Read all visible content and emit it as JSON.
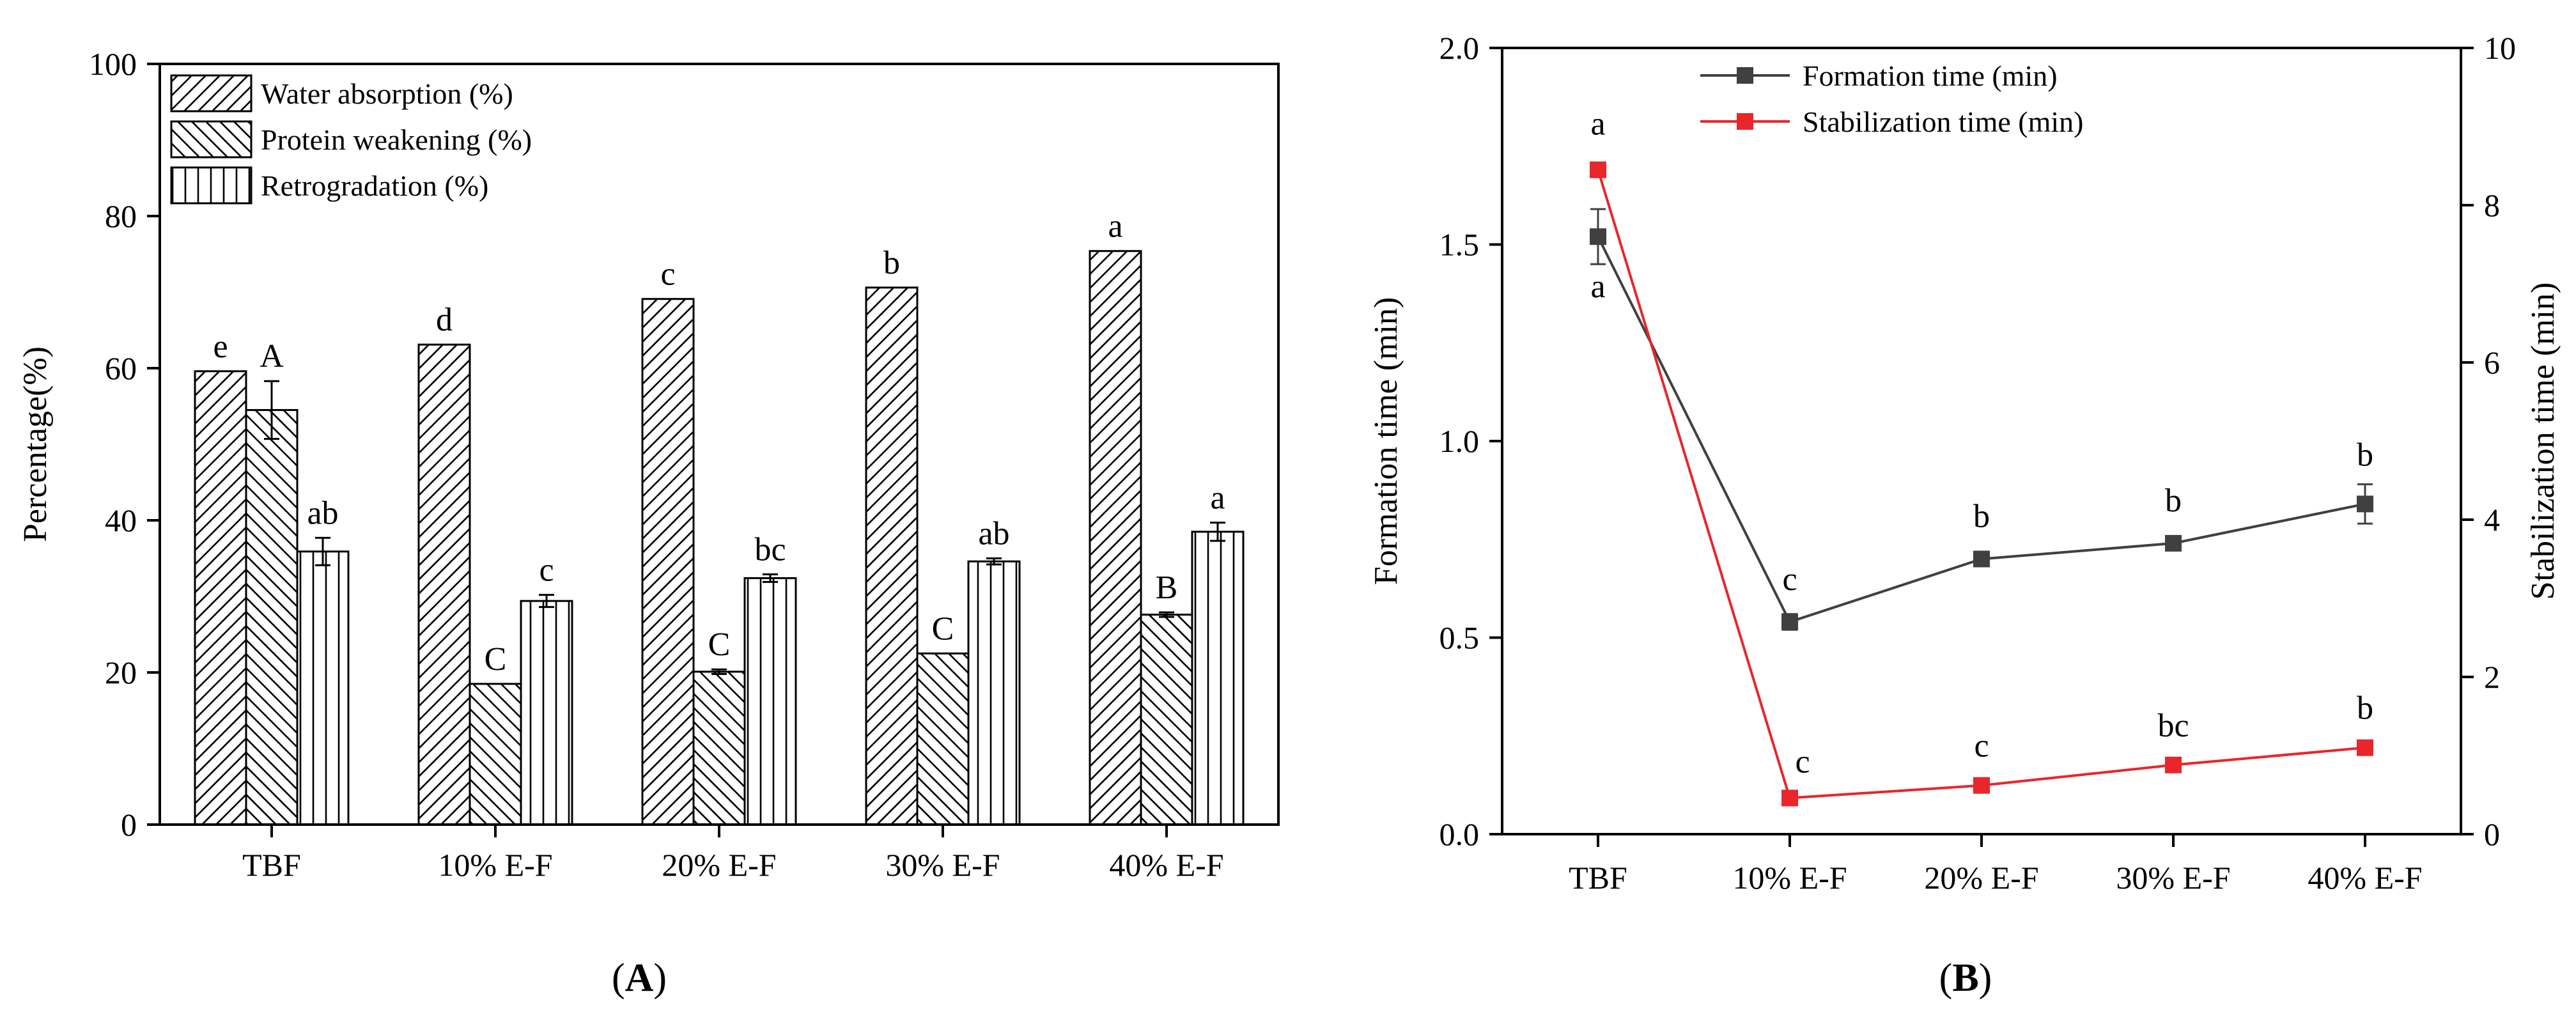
{
  "colors": {
    "axis": "#000000",
    "formation_series": "#404040",
    "stabilization_series": "#e8262b",
    "bar_fill": "#ffffff"
  },
  "chart_data": [
    {
      "panel_label": "A",
      "type": "bar",
      "categories": [
        "TBF",
        "10% E-F",
        "20% E-F",
        "30% E-F",
        "40% E-F"
      ],
      "ylabel": "Percentage(%)",
      "xlabel": "",
      "ylim": [
        0,
        100
      ],
      "yticks": [
        0,
        20,
        40,
        60,
        80,
        100
      ],
      "legend_position": "top-left",
      "series": [
        {
          "name": "Water absorption (%)",
          "pattern": "hatch-forward",
          "values": [
            59.6,
            63.1,
            69.1,
            70.6,
            75.4
          ],
          "errors": [
            0,
            0,
            0,
            0,
            0
          ],
          "letters": [
            "e",
            "d",
            "c",
            "b",
            "a"
          ]
        },
        {
          "name": "Protein weakening (%)",
          "pattern": "hatch-backward",
          "values": [
            54.5,
            18.5,
            20.1,
            22.5,
            27.6
          ],
          "errors": [
            3.8,
            0,
            0.3,
            0,
            0.3
          ],
          "letters": [
            "A",
            "C",
            "C",
            "C",
            "B"
          ]
        },
        {
          "name": "Retrogradation (%)",
          "pattern": "vertical-lines",
          "values": [
            35.9,
            29.4,
            32.4,
            34.6,
            38.5
          ],
          "errors": [
            1.8,
            0.8,
            0.5,
            0.4,
            1.2
          ],
          "letters": [
            "ab",
            "c",
            "bc",
            "ab",
            "a"
          ]
        }
      ]
    },
    {
      "panel_label": "B",
      "type": "line",
      "categories": [
        "TBF",
        "10% E-F",
        "20% E-F",
        "30% E-F",
        "40% E-F"
      ],
      "ylabel": "Formation time (min)",
      "ylabel_right": "Stabilization time (min)",
      "ylim": [
        0,
        2.0
      ],
      "yticks": [
        0.0,
        0.5,
        1.0,
        1.5,
        2.0
      ],
      "ytick_labels": [
        "0.0",
        "0.5",
        "1.0",
        "1.5",
        "2.0"
      ],
      "ylim_right": [
        0,
        10
      ],
      "yticks_right": [
        0,
        2,
        4,
        6,
        8,
        10
      ],
      "legend_position": "top-center",
      "series": [
        {
          "name": "Formation time (min)",
          "axis": "left",
          "values": [
            1.52,
            0.54,
            0.7,
            0.74,
            0.84
          ],
          "errors": [
            0.07,
            0.02,
            0.01,
            0.01,
            0.05
          ],
          "letters": [
            "a",
            "c",
            "b",
            "b",
            "b"
          ]
        },
        {
          "name": "Stabilization time (min)",
          "axis": "right",
          "values": [
            8.45,
            0.46,
            0.62,
            0.88,
            1.1
          ],
          "errors": [
            0,
            0,
            0,
            0,
            0
          ],
          "letters": [
            "a",
            "c",
            "c",
            "bc",
            "b"
          ]
        }
      ]
    }
  ]
}
